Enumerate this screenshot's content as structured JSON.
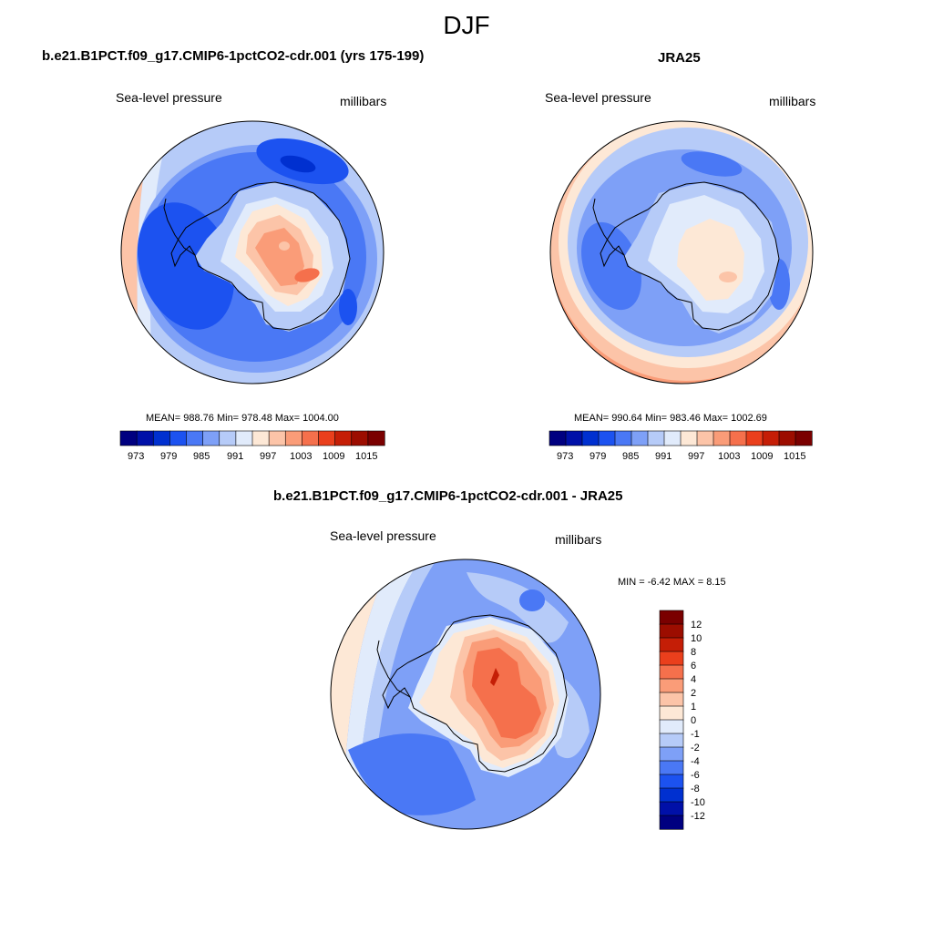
{
  "figure": {
    "title": "DJF"
  },
  "palette": {
    "colors": [
      "#000080",
      "#0010a8",
      "#0030d0",
      "#1c52f0",
      "#4a78f5",
      "#7ea0f7",
      "#b6cbf8",
      "#e1ebfb",
      "#fde8d6",
      "#fcc4a8",
      "#fa9c78",
      "#f5704c",
      "#ea3f1c",
      "#c51e06",
      "#9c0d00",
      "#7a0000"
    ]
  },
  "panels": [
    {
      "title": "b.e21.B1PCT.f09_g17.CMIP6-1pctCO2-cdr.001 (yrs 175-199)",
      "left_label": "Sea-level pressure",
      "right_label": "millibars",
      "stats": "MEAN= 988.76  Min= 978.48  Max= 1004.00",
      "colorbar_ticks": [
        "973",
        "979",
        "985",
        "991",
        "997",
        "1003",
        "1009",
        "1015"
      ]
    },
    {
      "title": "JRA25",
      "left_label": "Sea-level pressure",
      "right_label": "millibars",
      "stats": "MEAN= 990.64  Min= 983.46  Max= 1002.69",
      "colorbar_ticks": [
        "973",
        "979",
        "985",
        "991",
        "997",
        "1003",
        "1009",
        "1015"
      ]
    },
    {
      "title": "b.e21.B1PCT.f09_g17.CMIP6-1pctCO2-cdr.001 - JRA25",
      "left_label": "Sea-level pressure",
      "right_label": "millibars",
      "stats": "MIN =  -6.42 MAX =   8.15",
      "colorbar_ticks": [
        "12",
        "10",
        "8",
        "6",
        "4",
        "2",
        "1",
        "0",
        "-1",
        "-2",
        "-4",
        "-6",
        "-8",
        "-10",
        "-12"
      ]
    }
  ],
  "chart_data": [
    {
      "type": "heatmap",
      "projection": "south-polar-stereographic",
      "variable": "Sea-level pressure",
      "units": "millibars",
      "title": "b.e21.B1PCT.f09_g17.CMIP6-1pctCO2-cdr.001 (yrs 175-199)",
      "mean": 988.76,
      "min": 978.48,
      "max": 1004.0,
      "contour_levels": [
        973,
        976,
        979,
        982,
        985,
        988,
        991,
        994,
        997,
        1000,
        1003,
        1006,
        1009,
        1012,
        1015
      ]
    },
    {
      "type": "heatmap",
      "projection": "south-polar-stereographic",
      "variable": "Sea-level pressure",
      "units": "millibars",
      "title": "JRA25",
      "mean": 990.64,
      "min": 983.46,
      "max": 1002.69,
      "contour_levels": [
        973,
        976,
        979,
        982,
        985,
        988,
        991,
        994,
        997,
        1000,
        1003,
        1006,
        1009,
        1012,
        1015
      ]
    },
    {
      "type": "heatmap",
      "projection": "south-polar-stereographic",
      "variable": "Sea-level pressure",
      "units": "millibars",
      "title": "b.e21.B1PCT.f09_g17.CMIP6-1pctCO2-cdr.001 - JRA25",
      "min": -6.42,
      "max": 8.15,
      "contour_levels": [
        -12,
        -10,
        -8,
        -6,
        -4,
        -2,
        -1,
        0,
        1,
        2,
        4,
        6,
        8,
        10,
        12
      ]
    }
  ]
}
